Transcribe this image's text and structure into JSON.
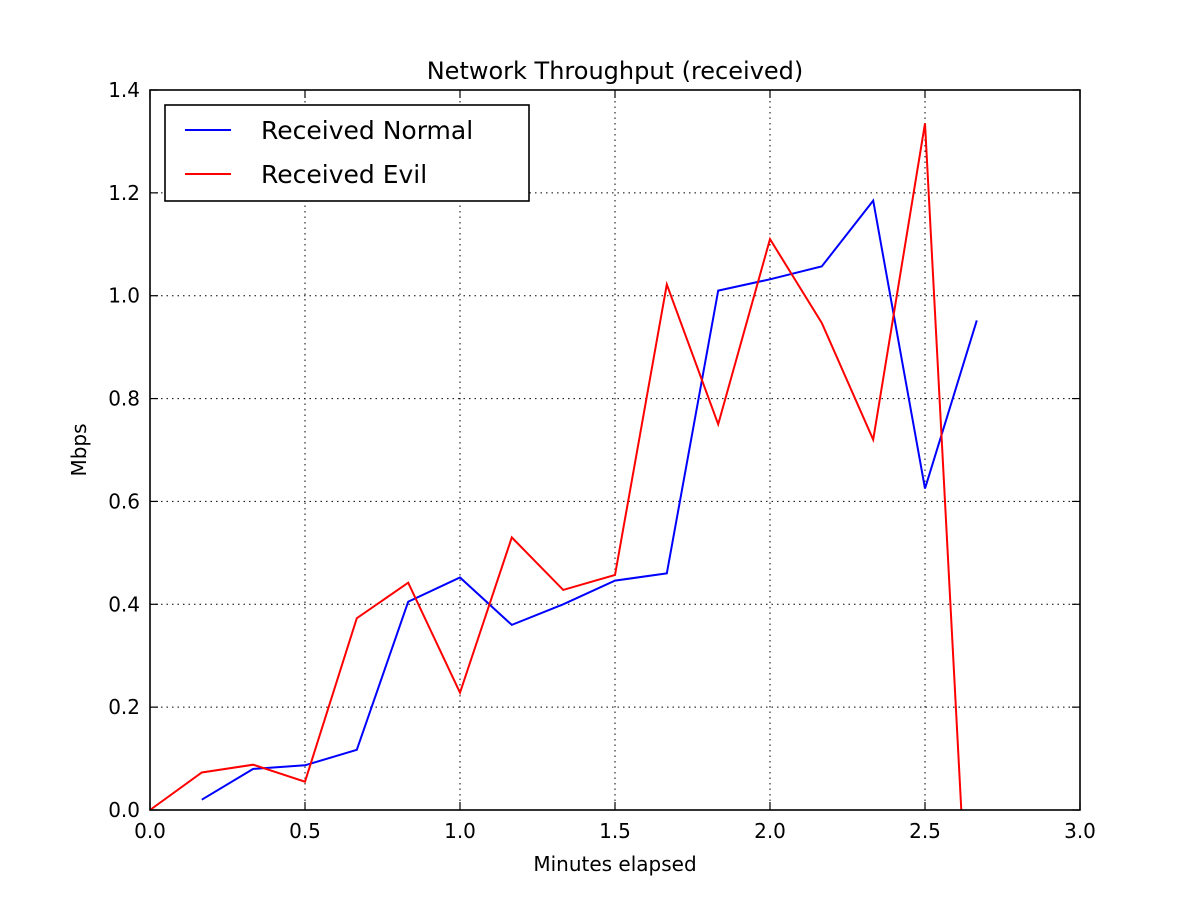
{
  "chart_data": {
    "type": "line",
    "title": "Network Throughput (received)",
    "xlabel": "Minutes elapsed",
    "ylabel": "Mbps",
    "xlim": [
      0.0,
      3.0
    ],
    "ylim": [
      0.0,
      1.4
    ],
    "xticks": [
      0.0,
      0.5,
      1.0,
      1.5,
      2.0,
      2.5,
      3.0
    ],
    "xtick_labels": [
      "0.0",
      "0.5",
      "1.0",
      "1.5",
      "2.0",
      "2.5",
      "3.0"
    ],
    "yticks": [
      0.0,
      0.2,
      0.4,
      0.6,
      0.8,
      1.0,
      1.2,
      1.4
    ],
    "ytick_labels": [
      "0.0",
      "0.2",
      "0.4",
      "0.6",
      "0.8",
      "1.0",
      "1.2",
      "1.4"
    ],
    "grid": true,
    "legend_position": "top-left",
    "series": [
      {
        "name": "Received Normal",
        "color": "#0000ff",
        "x": [
          0.167,
          0.333,
          0.5,
          0.667,
          0.833,
          1.0,
          1.167,
          1.333,
          1.5,
          1.667,
          1.833,
          2.0,
          2.167,
          2.333,
          2.5,
          2.667
        ],
        "y": [
          0.02,
          0.08,
          0.087,
          0.117,
          0.405,
          0.452,
          0.36,
          0.4,
          0.446,
          0.46,
          1.01,
          1.032,
          1.057,
          1.185,
          0.625,
          0.952
        ]
      },
      {
        "name": "Received Evil",
        "color": "#ff0000",
        "x": [
          0.0,
          0.167,
          0.333,
          0.5,
          0.667,
          0.833,
          1.0,
          1.167,
          1.333,
          1.5,
          1.667,
          1.833,
          2.0,
          2.167,
          2.333,
          2.5,
          2.617
        ],
        "y": [
          0.0,
          0.073,
          0.088,
          0.055,
          0.373,
          0.442,
          0.228,
          0.53,
          0.428,
          0.457,
          1.022,
          0.75,
          1.11,
          0.947,
          0.72,
          1.335,
          0.0
        ]
      }
    ]
  }
}
